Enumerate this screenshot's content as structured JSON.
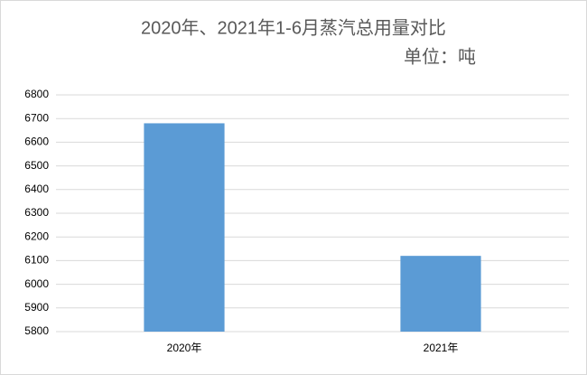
{
  "chart_data": {
    "type": "bar",
    "title": "2020年、2021年1-6月蒸汽总用量对比",
    "subtitle": "单位：吨",
    "categories": [
      "2020年",
      "2021年"
    ],
    "values": [
      6680,
      6120
    ],
    "color": "#5b9bd5",
    "ylim": [
      5800,
      6800
    ],
    "yticks": [
      5800,
      5900,
      6000,
      6100,
      6200,
      6300,
      6400,
      6500,
      6600,
      6700,
      6800
    ],
    "grid": true
  }
}
